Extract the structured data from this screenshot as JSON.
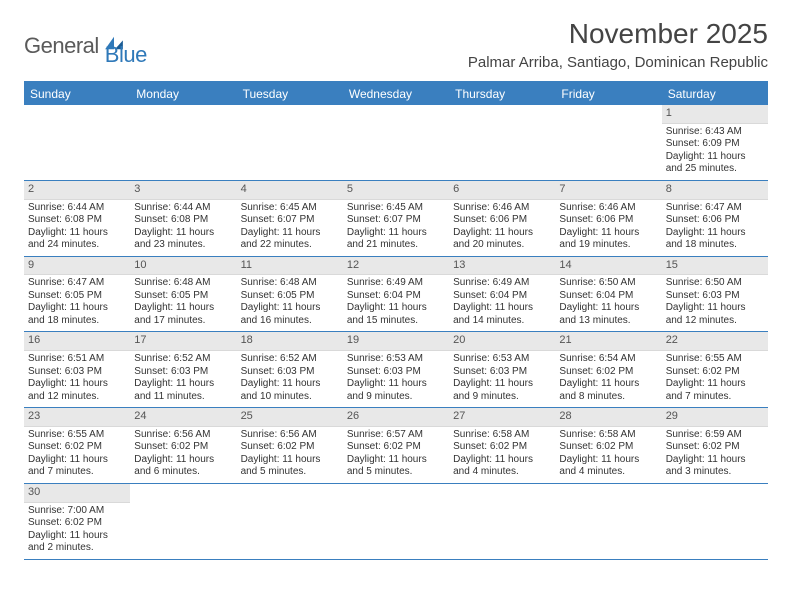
{
  "logo": {
    "word1": "General",
    "word2": "Blue"
  },
  "title": "November 2025",
  "location": "Palmar Arriba, Santiago, Dominican Republic",
  "colors": {
    "header_bg": "#3a7fbf",
    "header_text": "#ffffff",
    "daynum_bg": "#e8e8e8",
    "rule": "#3a7fbf",
    "logo_dark": "#5a5a5a",
    "logo_blue": "#2f79b9"
  },
  "day_headers": [
    "Sunday",
    "Monday",
    "Tuesday",
    "Wednesday",
    "Thursday",
    "Friday",
    "Saturday"
  ],
  "weeks": [
    [
      null,
      null,
      null,
      null,
      null,
      null,
      {
        "n": "1",
        "sr": "6:43 AM",
        "ss": "6:09 PM",
        "dl": "11 hours and 25 minutes."
      }
    ],
    [
      {
        "n": "2",
        "sr": "6:44 AM",
        "ss": "6:08 PM",
        "dl": "11 hours and 24 minutes."
      },
      {
        "n": "3",
        "sr": "6:44 AM",
        "ss": "6:08 PM",
        "dl": "11 hours and 23 minutes."
      },
      {
        "n": "4",
        "sr": "6:45 AM",
        "ss": "6:07 PM",
        "dl": "11 hours and 22 minutes."
      },
      {
        "n": "5",
        "sr": "6:45 AM",
        "ss": "6:07 PM",
        "dl": "11 hours and 21 minutes."
      },
      {
        "n": "6",
        "sr": "6:46 AM",
        "ss": "6:06 PM",
        "dl": "11 hours and 20 minutes."
      },
      {
        "n": "7",
        "sr": "6:46 AM",
        "ss": "6:06 PM",
        "dl": "11 hours and 19 minutes."
      },
      {
        "n": "8",
        "sr": "6:47 AM",
        "ss": "6:06 PM",
        "dl": "11 hours and 18 minutes."
      }
    ],
    [
      {
        "n": "9",
        "sr": "6:47 AM",
        "ss": "6:05 PM",
        "dl": "11 hours and 18 minutes."
      },
      {
        "n": "10",
        "sr": "6:48 AM",
        "ss": "6:05 PM",
        "dl": "11 hours and 17 minutes."
      },
      {
        "n": "11",
        "sr": "6:48 AM",
        "ss": "6:05 PM",
        "dl": "11 hours and 16 minutes."
      },
      {
        "n": "12",
        "sr": "6:49 AM",
        "ss": "6:04 PM",
        "dl": "11 hours and 15 minutes."
      },
      {
        "n": "13",
        "sr": "6:49 AM",
        "ss": "6:04 PM",
        "dl": "11 hours and 14 minutes."
      },
      {
        "n": "14",
        "sr": "6:50 AM",
        "ss": "6:04 PM",
        "dl": "11 hours and 13 minutes."
      },
      {
        "n": "15",
        "sr": "6:50 AM",
        "ss": "6:03 PM",
        "dl": "11 hours and 12 minutes."
      }
    ],
    [
      {
        "n": "16",
        "sr": "6:51 AM",
        "ss": "6:03 PM",
        "dl": "11 hours and 12 minutes."
      },
      {
        "n": "17",
        "sr": "6:52 AM",
        "ss": "6:03 PM",
        "dl": "11 hours and 11 minutes."
      },
      {
        "n": "18",
        "sr": "6:52 AM",
        "ss": "6:03 PM",
        "dl": "11 hours and 10 minutes."
      },
      {
        "n": "19",
        "sr": "6:53 AM",
        "ss": "6:03 PM",
        "dl": "11 hours and 9 minutes."
      },
      {
        "n": "20",
        "sr": "6:53 AM",
        "ss": "6:03 PM",
        "dl": "11 hours and 9 minutes."
      },
      {
        "n": "21",
        "sr": "6:54 AM",
        "ss": "6:02 PM",
        "dl": "11 hours and 8 minutes."
      },
      {
        "n": "22",
        "sr": "6:55 AM",
        "ss": "6:02 PM",
        "dl": "11 hours and 7 minutes."
      }
    ],
    [
      {
        "n": "23",
        "sr": "6:55 AM",
        "ss": "6:02 PM",
        "dl": "11 hours and 7 minutes."
      },
      {
        "n": "24",
        "sr": "6:56 AM",
        "ss": "6:02 PM",
        "dl": "11 hours and 6 minutes."
      },
      {
        "n": "25",
        "sr": "6:56 AM",
        "ss": "6:02 PM",
        "dl": "11 hours and 5 minutes."
      },
      {
        "n": "26",
        "sr": "6:57 AM",
        "ss": "6:02 PM",
        "dl": "11 hours and 5 minutes."
      },
      {
        "n": "27",
        "sr": "6:58 AM",
        "ss": "6:02 PM",
        "dl": "11 hours and 4 minutes."
      },
      {
        "n": "28",
        "sr": "6:58 AM",
        "ss": "6:02 PM",
        "dl": "11 hours and 4 minutes."
      },
      {
        "n": "29",
        "sr": "6:59 AM",
        "ss": "6:02 PM",
        "dl": "11 hours and 3 minutes."
      }
    ],
    [
      {
        "n": "30",
        "sr": "7:00 AM",
        "ss": "6:02 PM",
        "dl": "11 hours and 2 minutes."
      },
      null,
      null,
      null,
      null,
      null,
      null
    ]
  ],
  "labels": {
    "sunrise": "Sunrise:",
    "sunset": "Sunset:",
    "daylight": "Daylight:"
  }
}
